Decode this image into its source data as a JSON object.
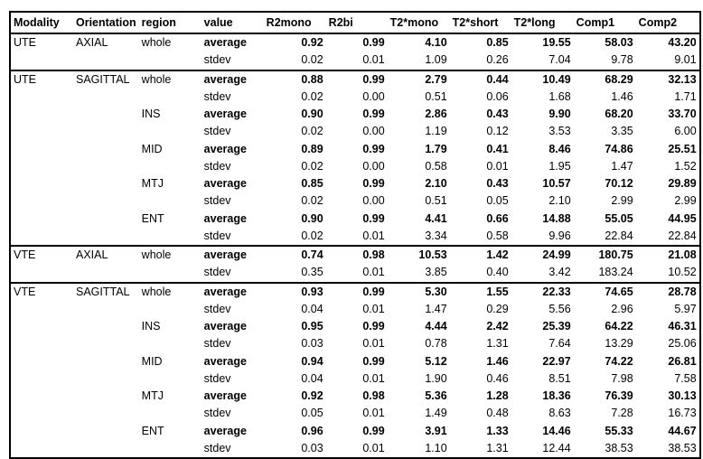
{
  "table": {
    "header": [
      "Modality",
      "Orientation",
      "region",
      "value",
      "R2mono",
      "R2bi",
      "T2*mono",
      "T2*short",
      "T2*long",
      "Comp1",
      "Comp2"
    ],
    "groups": [
      {
        "modality": "UTE",
        "orientation": "AXIAL",
        "regions": [
          {
            "name": "whole",
            "rows": [
              [
                "average",
                "0.92",
                "0.99",
                "4.10",
                "0.85",
                "19.55",
                "58.03",
                "43.20"
              ],
              [
                "stdev",
                "0.02",
                "0.01",
                "1.09",
                "0.26",
                "7.04",
                "9.78",
                "9.01"
              ]
            ]
          }
        ]
      },
      {
        "modality": "UTE",
        "orientation": "SAGITTAL",
        "regions": [
          {
            "name": "whole",
            "rows": [
              [
                "average",
                "0.88",
                "0.99",
                "2.79",
                "0.44",
                "10.49",
                "68.29",
                "32.13"
              ],
              [
                "stdev",
                "0.02",
                "0.00",
                "0.51",
                "0.06",
                "1.68",
                "1.46",
                "1.71"
              ]
            ]
          },
          {
            "name": "INS",
            "rows": [
              [
                "average",
                "0.90",
                "0.99",
                "2.86",
                "0.43",
                "9.90",
                "68.20",
                "33.70"
              ],
              [
                "stdev",
                "0.02",
                "0.00",
                "1.19",
                "0.12",
                "3.53",
                "3.35",
                "6.00"
              ]
            ]
          },
          {
            "name": "MID",
            "rows": [
              [
                "average",
                "0.89",
                "0.99",
                "1.79",
                "0.41",
                "8.46",
                "74.86",
                "25.51"
              ],
              [
                "stdev",
                "0.02",
                "0.00",
                "0.58",
                "0.01",
                "1.95",
                "1.47",
                "1.52"
              ]
            ]
          },
          {
            "name": "MTJ",
            "rows": [
              [
                "average",
                "0.85",
                "0.99",
                "2.10",
                "0.43",
                "10.57",
                "70.12",
                "29.89"
              ],
              [
                "stdev",
                "0.02",
                "0.00",
                "0.51",
                "0.05",
                "2.10",
                "2.99",
                "2.99"
              ]
            ]
          },
          {
            "name": "ENT",
            "rows": [
              [
                "average",
                "0.90",
                "0.99",
                "4.41",
                "0.66",
                "14.88",
                "55.05",
                "44.95"
              ],
              [
                "stdev",
                "0.02",
                "0.01",
                "3.34",
                "0.58",
                "9.96",
                "22.84",
                "22.84"
              ]
            ]
          }
        ]
      },
      {
        "modality": "VTE",
        "orientation": "AXIAL",
        "regions": [
          {
            "name": "whole",
            "rows": [
              [
                "average",
                "0.74",
                "0.98",
                "10.53",
                "1.42",
                "24.99",
                "180.75",
                "21.08"
              ],
              [
                "stdev",
                "0.35",
                "0.01",
                "3.85",
                "0.40",
                "3.42",
                "183.24",
                "10.52"
              ]
            ]
          }
        ]
      },
      {
        "modality": "VTE",
        "orientation": "SAGITTAL",
        "regions": [
          {
            "name": "whole",
            "rows": [
              [
                "average",
                "0.93",
                "0.99",
                "5.30",
                "1.55",
                "22.33",
                "74.65",
                "28.78"
              ],
              [
                "stdev",
                "0.04",
                "0.01",
                "1.47",
                "0.29",
                "5.56",
                "2.96",
                "5.97"
              ]
            ]
          },
          {
            "name": "INS",
            "rows": [
              [
                "average",
                "0.95",
                "0.99",
                "4.44",
                "2.42",
                "25.39",
                "64.22",
                "46.31"
              ],
              [
                "stdev",
                "0.03",
                "0.01",
                "0.78",
                "1.31",
                "7.64",
                "13.29",
                "25.06"
              ]
            ]
          },
          {
            "name": "MID",
            "rows": [
              [
                "average",
                "0.94",
                "0.99",
                "5.12",
                "1.46",
                "22.97",
                "74.22",
                "26.81"
              ],
              [
                "stdev",
                "0.04",
                "0.01",
                "1.90",
                "0.46",
                "8.51",
                "7.98",
                "7.58"
              ]
            ]
          },
          {
            "name": "MTJ",
            "rows": [
              [
                "average",
                "0.92",
                "0.98",
                "5.36",
                "1.28",
                "18.36",
                "76.39",
                "30.13"
              ],
              [
                "stdev",
                "0.05",
                "0.01",
                "1.49",
                "0.48",
                "8.63",
                "7.28",
                "16.73"
              ]
            ]
          },
          {
            "name": "ENT",
            "rows": [
              [
                "average",
                "0.96",
                "0.99",
                "3.91",
                "1.33",
                "14.46",
                "55.33",
                "44.67"
              ],
              [
                "stdev",
                "0.03",
                "0.01",
                "1.10",
                "1.31",
                "12.44",
                "38.53",
                "38.53"
              ]
            ]
          }
        ]
      }
    ]
  }
}
